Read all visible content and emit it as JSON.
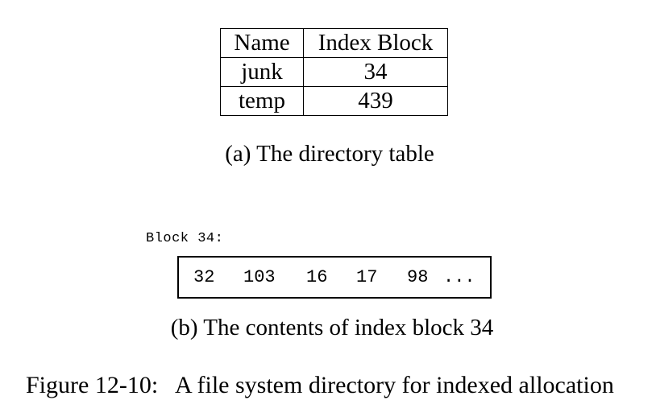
{
  "directory_table": {
    "headers": [
      "Name",
      "Index Block"
    ],
    "rows": [
      {
        "name": "junk",
        "index_block": "34"
      },
      {
        "name": "temp",
        "index_block": "439"
      }
    ]
  },
  "caption_a": "(a)  The directory table",
  "block": {
    "label": "Block 34:",
    "entries": [
      "32",
      "103",
      "16",
      "17",
      "98",
      "..."
    ]
  },
  "caption_b": "(b)  The contents of index block 34",
  "figure_caption": "Figure 12-10:   A file system directory for indexed allocation"
}
